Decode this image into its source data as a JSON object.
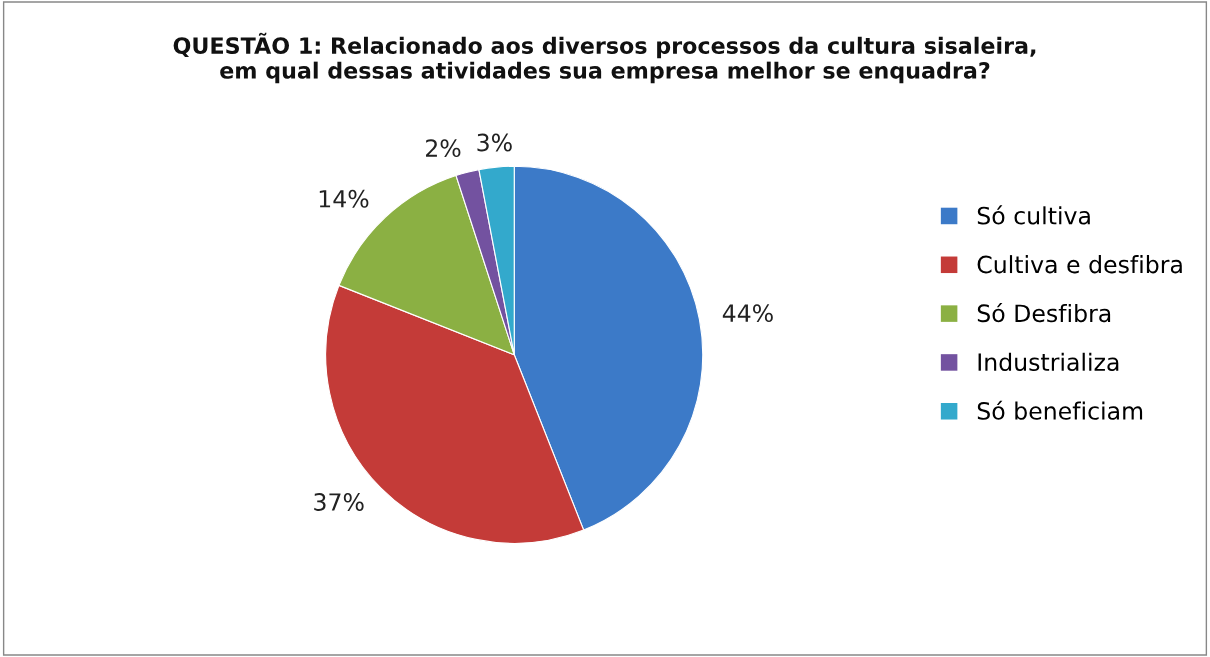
{
  "chart_data": {
    "type": "pie",
    "title": "QUESTÃO 1: Relacionado aos diversos processos da cultura sisaleira,\nem qual dessas atividades sua empresa melhor se enquadra?",
    "categories": [
      "Só cultiva",
      "Cultiva e desfibra",
      "Só Desfibra",
      "Industrializa",
      "Só beneficiam"
    ],
    "values": [
      44,
      37,
      14,
      2,
      3
    ],
    "value_labels": [
      "44%",
      "37%",
      "14%",
      "2%",
      "3%"
    ],
    "colors": [
      "#3c7ac8",
      "#c43b38",
      "#8bb043",
      "#7352a0",
      "#33a9cc"
    ],
    "legend": "right"
  }
}
